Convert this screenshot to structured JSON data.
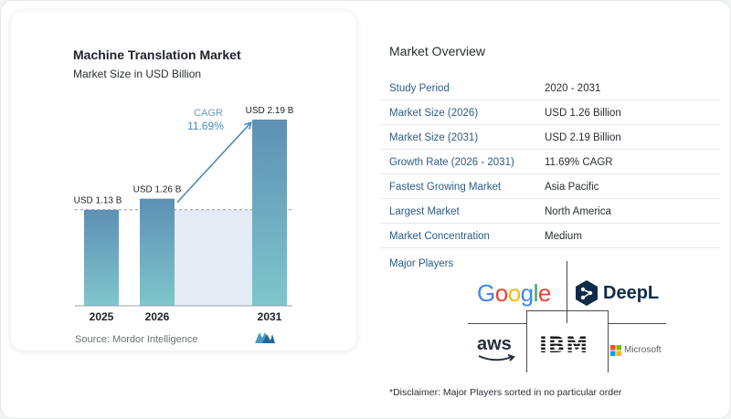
{
  "chart_data": {
    "type": "bar",
    "title": "Machine Translation Market",
    "subtitle": "Market Size in USD Billion",
    "categories": [
      "2025",
      "2026",
      "2031"
    ],
    "values": [
      1.13,
      1.26,
      2.19
    ],
    "data_labels": [
      "USD 1.13 B",
      "USD 1.26 B",
      "USD 2.19 B"
    ],
    "ylim": [
      0,
      2.19
    ],
    "grid": false,
    "annotation": {
      "label": "CAGR",
      "value": "11.69%"
    }
  },
  "source": "Source:  Mordor Intelligence",
  "colors": {
    "bar_top": "#5e90b4",
    "bar_bottom": "#7fc6cc",
    "label_blue": "#2c5c88",
    "cagr": "#4a8ab8",
    "shade": "#e4ebf4"
  },
  "overview": {
    "title": "Market Overview",
    "rows": [
      {
        "label": "Study Period",
        "value": "2020 - 2031"
      },
      {
        "label": "Market Size (2026)",
        "value": "USD 1.26 Billion"
      },
      {
        "label": "Market Size (2031)",
        "value": "USD 2.19 Billion"
      },
      {
        "label": "Growth Rate (2026 - 2031)",
        "value": "11.69% CAGR"
      },
      {
        "label": "Fastest Growing Market",
        "value": "Asia Pacific"
      },
      {
        "label": "Largest Market",
        "value": "North America"
      },
      {
        "label": "Market Concentration",
        "value": "Medium"
      }
    ]
  },
  "major_players": {
    "title": "Major Players",
    "companies": [
      "Google",
      "DeepL",
      "aws",
      "IBM",
      "Microsoft"
    ]
  },
  "disclaimer": "*Disclaimer: Major Players sorted in no particular order"
}
